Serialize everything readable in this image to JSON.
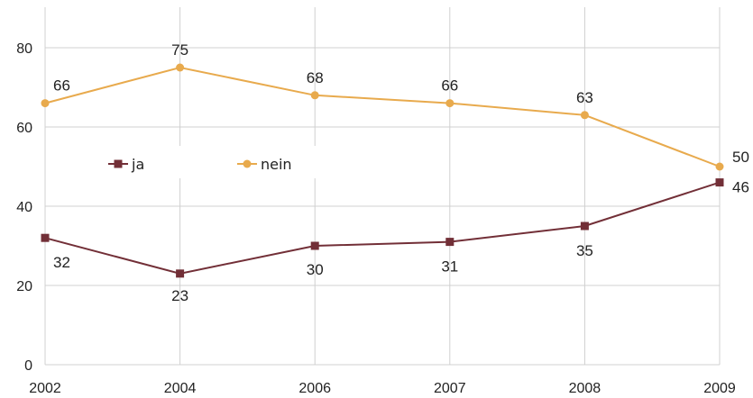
{
  "chart_data": {
    "type": "line",
    "categories": [
      "2002",
      "2004",
      "2006",
      "2007",
      "2008",
      "2009"
    ],
    "series": [
      {
        "name": "ja",
        "values": [
          32,
          23,
          30,
          31,
          35,
          46
        ],
        "color": "#722f37",
        "marker": "square"
      },
      {
        "name": "nein",
        "values": [
          66,
          75,
          68,
          66,
          63,
          50
        ],
        "color": "#e8aa4d",
        "marker": "circle"
      }
    ],
    "title": "",
    "xlabel": "",
    "ylabel": "",
    "ylim": [
      0,
      80
    ],
    "yticks": [
      0,
      20,
      40,
      60,
      80
    ],
    "grid": true,
    "legend": "center-left"
  }
}
